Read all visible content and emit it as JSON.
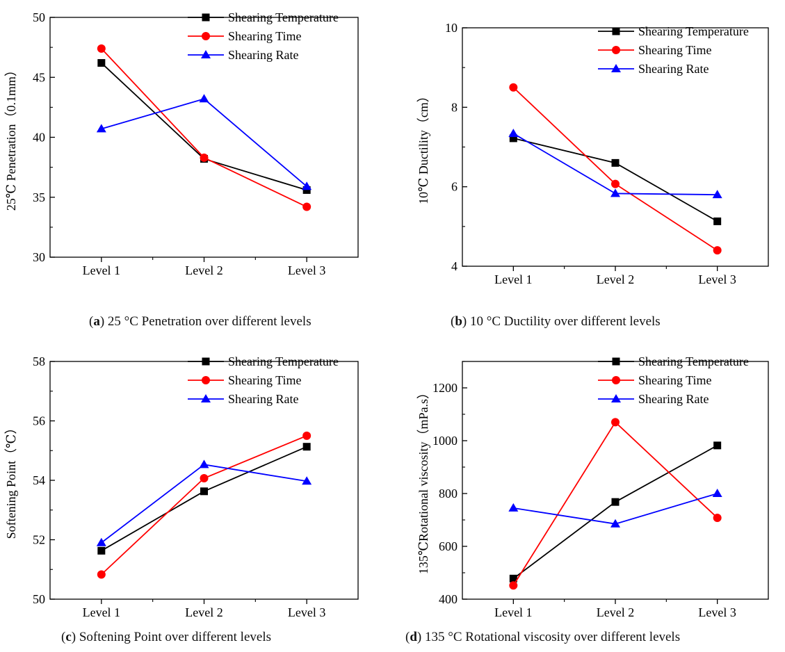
{
  "colors": {
    "Shearing Temperature": "#000000",
    "Shearing Time": "#ff0000",
    "Shearing Rate": "#0000ff"
  },
  "captions": [
    {
      "letter": "a",
      "text": "25 °C Penetration over different levels"
    },
    {
      "letter": "b",
      "text": "10 °C Ductility over different levels"
    },
    {
      "letter": "c",
      "text": "Softening Point over different levels"
    },
    {
      "letter": "d",
      "text": "135 °C Rotational viscosity over different levels"
    }
  ],
  "chart_data": [
    {
      "id": "a",
      "type": "line",
      "categories": [
        "Level 1",
        "Level 2",
        "Level 3"
      ],
      "ylabel": "25℃ Penetration（0.1mm）",
      "ylim": [
        30,
        50
      ],
      "yticks": [
        30,
        35,
        40,
        45,
        50
      ],
      "legend_position": "top-right",
      "grid": false,
      "series": [
        {
          "name": "Shearing Temperature",
          "marker": "square",
          "values": [
            46.2,
            38.2,
            35.6
          ]
        },
        {
          "name": "Shearing Time",
          "marker": "circle",
          "values": [
            47.4,
            38.3,
            34.2
          ]
        },
        {
          "name": "Shearing Rate",
          "marker": "triangle",
          "values": [
            40.7,
            43.2,
            35.9
          ]
        }
      ]
    },
    {
      "id": "b",
      "type": "line",
      "categories": [
        "Level 1",
        "Level 2",
        "Level 3"
      ],
      "ylabel": "10℃ Ductility（cm）",
      "ylim": [
        4,
        10
      ],
      "yticks": [
        4,
        6,
        8,
        10
      ],
      "legend_position": "top-right",
      "grid": false,
      "series": [
        {
          "name": "Shearing Temperature",
          "marker": "square",
          "values": [
            7.22,
            6.6,
            5.13
          ]
        },
        {
          "name": "Shearing Time",
          "marker": "circle",
          "values": [
            8.5,
            6.07,
            4.4
          ]
        },
        {
          "name": "Shearing Rate",
          "marker": "triangle",
          "values": [
            7.34,
            5.83,
            5.8
          ]
        }
      ]
    },
    {
      "id": "c",
      "type": "line",
      "categories": [
        "Level 1",
        "Level 2",
        "Level 3"
      ],
      "ylabel": "Softening Point（℃）",
      "ylim": [
        50,
        58
      ],
      "yticks": [
        50,
        52,
        54,
        56,
        58
      ],
      "legend_position": "top-right",
      "grid": false,
      "series": [
        {
          "name": "Shearing Temperature",
          "marker": "square",
          "values": [
            51.63,
            53.63,
            55.13
          ]
        },
        {
          "name": "Shearing Time",
          "marker": "circle",
          "values": [
            50.83,
            54.07,
            55.5
          ]
        },
        {
          "name": "Shearing Rate",
          "marker": "triangle",
          "values": [
            51.9,
            54.53,
            53.97
          ]
        }
      ]
    },
    {
      "id": "d",
      "type": "line",
      "categories": [
        "Level 1",
        "Level 2",
        "Level 3"
      ],
      "ylabel": "135℃Rotational viscosity（mPa.s）",
      "ylim": [
        400,
        1300
      ],
      "yticks": [
        400,
        600,
        800,
        1000,
        1200
      ],
      "legend_position": "top-right",
      "grid": false,
      "series": [
        {
          "name": "Shearing Temperature",
          "marker": "square",
          "values": [
            478,
            768,
            982
          ]
        },
        {
          "name": "Shearing Time",
          "marker": "circle",
          "values": [
            452,
            1070,
            708
          ]
        },
        {
          "name": "Shearing Rate",
          "marker": "triangle",
          "values": [
            745,
            685,
            800
          ]
        }
      ]
    }
  ]
}
